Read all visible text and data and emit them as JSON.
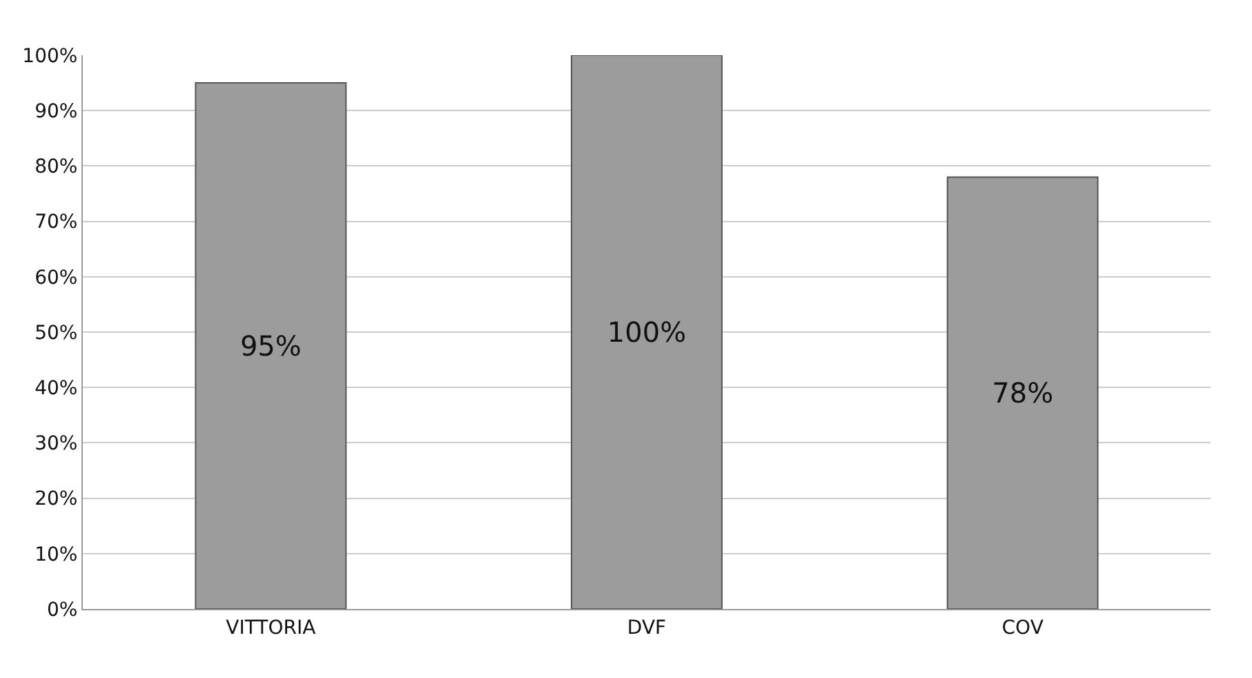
{
  "chart_data": {
    "type": "bar",
    "categories": [
      "VITTORIA",
      "DVF",
      "COV"
    ],
    "values": [
      95,
      100,
      78
    ],
    "value_labels": [
      "95%",
      "100%",
      "78%"
    ],
    "color": "#9c9c9c",
    "ylim": [
      0,
      100
    ],
    "yticks": [
      {
        "value": 0,
        "label": "0%"
      },
      {
        "value": 10,
        "label": "10%"
      },
      {
        "value": 20,
        "label": "20%"
      },
      {
        "value": 30,
        "label": "30%"
      },
      {
        "value": 40,
        "label": "40%"
      },
      {
        "value": 50,
        "label": "50%"
      },
      {
        "value": 60,
        "label": "60%"
      },
      {
        "value": 70,
        "label": "70%"
      },
      {
        "value": 80,
        "label": "80%"
      },
      {
        "value": 90,
        "label": "90%"
      },
      {
        "value": 100,
        "label": "100%"
      }
    ],
    "grid": "y"
  }
}
